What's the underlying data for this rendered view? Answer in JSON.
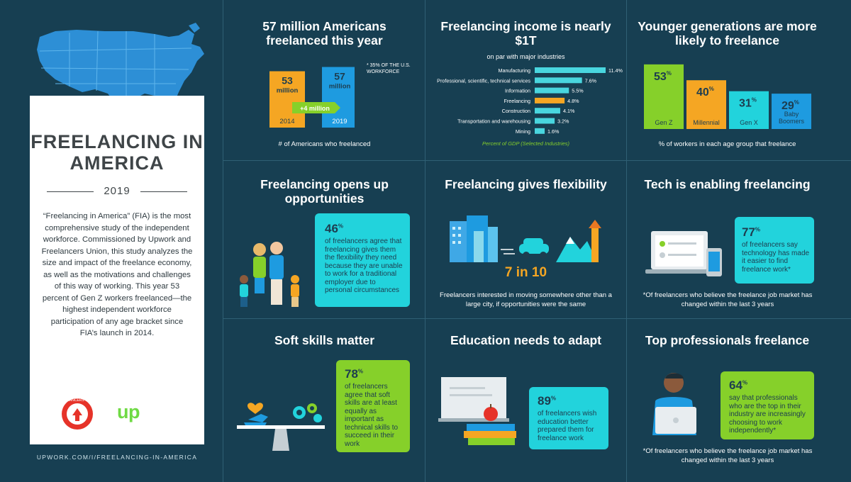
{
  "left": {
    "title": "FREELANCING IN AMERICA",
    "year": "2019",
    "body": "“Freelancing in America” (FIA) is the most comprehensive study of the independent workforce. Commissioned by Upwork and Freelancers Union, this study analyzes the size and impact of the freelance economy, as well as the motivations and challenges of this way of working. This year 53 percent of Gen Z workers freelanced—the highest independent workforce participation of any age bracket since FIA’s launch in 2014.",
    "fu_logo_text": "FREELANCERS UNION",
    "upwork_logo": "upwork",
    "url": "UPWORK.COM/I/FREELANCING-IN-AMERICA"
  },
  "panel1": {
    "title": "57 million Americans freelanced this year",
    "note": "* 35% OF THE U.S. WORKFORCE",
    "arrow_label": "+4 million",
    "caption": "# of Americans who freelanced",
    "color_2014": "#f5a623",
    "color_2019": "#1e9be0"
  },
  "panel2": {
    "title": "Freelancing income is nearly $1T",
    "subtitle": "on par with major industries",
    "bar_color": "#49d6df",
    "highlight_color": "#f5a623"
  },
  "panel3": {
    "title": "Younger generations are more likely to freelance",
    "caption": "% of workers in each age group that freelance"
  },
  "panel4": {
    "title": "Freelancing opens up opportunities",
    "pct": "46",
    "text": "of freelancers agree that freelancing gives them the flexibility they need because they are unable to work for a traditional employer due to personal circumstances"
  },
  "panel5": {
    "title": "Freelancing gives flexibility",
    "stat": "7 in 10",
    "caption": "Freelancers interested in moving somewhere other than a large city, if opportunities were the same"
  },
  "panel6": {
    "title": "Tech is enabling freelancing",
    "pct": "77",
    "text": "of freelancers say technology has made it easier to find freelance work*",
    "footnote": "*Of freelancers who believe the freelance job market has changed within the last 3 years"
  },
  "panel7": {
    "title": "Soft skills matter",
    "pct": "78",
    "text": "of freelancers agree that soft skills are at least equally as important as technical skills to succeed in their work"
  },
  "panel8": {
    "title": "Education needs to adapt",
    "pct": "89",
    "text": "of freelancers wish education better prepared them for freelance work"
  },
  "panel9": {
    "title": "Top professionals freelance",
    "pct": "64",
    "text": "say that professionals who are the top in their industry are increasingly choosing to work independently*",
    "footnote": "*Of freelancers who believe the freelance job market has changed within the last 3 years"
  },
  "chart_data": [
    {
      "type": "bar",
      "categories": [
        "2014",
        "2019"
      ],
      "series": [
        {
          "values": [
            53,
            57
          ]
        }
      ],
      "value_labels": [
        "53 million",
        "57 million"
      ],
      "title": "57 million Americans freelanced this year",
      "xlabel": "# of Americans who freelanced",
      "ylabel": "",
      "annotation": "+4 million"
    },
    {
      "type": "bar",
      "orientation": "horizontal",
      "categories": [
        "Manufacturing",
        "Professional, scientific, technical services",
        "Information",
        "Freelancing",
        "Construction",
        "Transportation and warehousing",
        "Mining"
      ],
      "values": [
        11.4,
        7.6,
        5.5,
        4.8,
        4.1,
        3.2,
        1.6
      ],
      "value_suffix": "%",
      "highlight": "Freelancing",
      "title": "Freelancing income is nearly $1T",
      "subtitle": "on par with major industries",
      "xlabel": "Percent of GDP (Selected Industries)",
      "ylabel": ""
    },
    {
      "type": "bar",
      "categories": [
        "Gen Z",
        "Millennial",
        "Gen X",
        "Baby Boomers"
      ],
      "values": [
        53,
        40,
        31,
        29
      ],
      "colors": [
        "#86d02a",
        "#f5a623",
        "#22d3dc",
        "#1e9be0"
      ],
      "title": "Younger generations are more likely to freelance",
      "xlabel": "% of workers in each age group that freelance",
      "ylabel": ""
    }
  ]
}
